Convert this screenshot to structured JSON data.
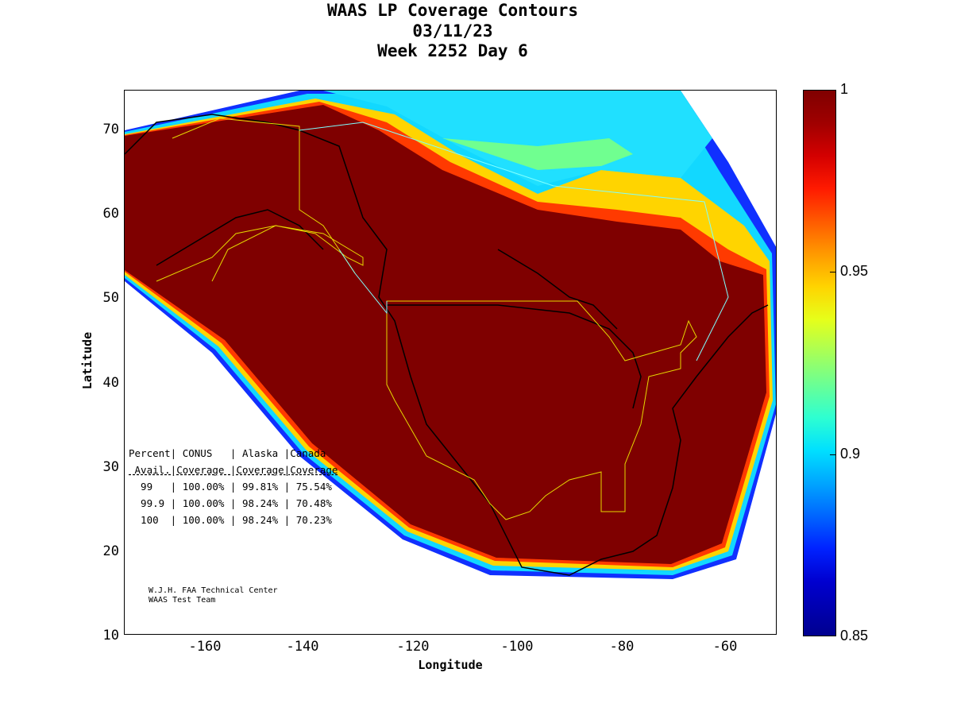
{
  "title": {
    "line1": "WAAS LP Coverage Contours",
    "line2": "03/11/23",
    "line3": "Week 2252 Day 6"
  },
  "axes": {
    "xlabel": "Longitude",
    "ylabel": "Latitude",
    "xticks": [
      "-160",
      "-140",
      "-120",
      "-100",
      "-80",
      "-60"
    ],
    "yticks": [
      "70",
      "60",
      "50",
      "40",
      "30",
      "20",
      "10"
    ],
    "xlim": [
      -175,
      -50
    ],
    "ylim": [
      10,
      75
    ]
  },
  "colorbar": {
    "ticks": [
      "1",
      "0.95",
      "0.9",
      "0.85"
    ],
    "range": [
      0.85,
      1
    ]
  },
  "table": {
    "header1": "Percent| CONUS   | Alaska |Canada",
    "header2": " Avail.|Coverage |Coverage|Coverage",
    "rows": [
      "  99   | 100.00% | 99.81% | 75.54%",
      "  99.9 | 100.00% | 98.24% | 70.48%",
      "  100  | 100.00% | 98.24% | 70.23%"
    ]
  },
  "credit": {
    "line1": "W.J.H. FAA Technical Center",
    "line2": "WAAS Test Team"
  },
  "colors": {
    "full_coverage": "#7f0000",
    "low_coverage": "#00008f"
  }
}
